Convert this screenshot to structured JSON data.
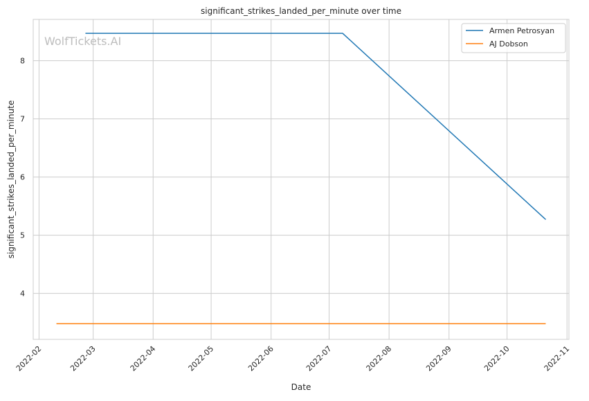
{
  "chart_data": {
    "type": "line",
    "title": "significant_strikes_landed_per_minute over time",
    "xlabel": "Date",
    "ylabel": "significant_strikes_landed_per_minute",
    "watermark": "WolfTickets.AI",
    "xlim": [
      "2022-01-29",
      "2022-11-02"
    ],
    "ylim": [
      3.21,
      8.71
    ],
    "x_ticks": [
      "2022-02",
      "2022-03",
      "2022-04",
      "2022-05",
      "2022-06",
      "2022-07",
      "2022-08",
      "2022-09",
      "2022-10",
      "2022-11"
    ],
    "y_ticks": [
      4,
      5,
      6,
      7,
      8
    ],
    "grid": true,
    "legend_position": "top-right",
    "series": [
      {
        "name": "Armen Petrosyan",
        "color": "#1f77b4",
        "x": [
          "2022-02-25",
          "2022-07-08",
          "2022-10-21"
        ],
        "y": [
          8.47,
          8.47,
          5.27
        ]
      },
      {
        "name": "AJ Dobson",
        "color": "#ff7f0e",
        "x": [
          "2022-02-10",
          "2022-10-21"
        ],
        "y": [
          3.48,
          3.48
        ]
      }
    ]
  }
}
